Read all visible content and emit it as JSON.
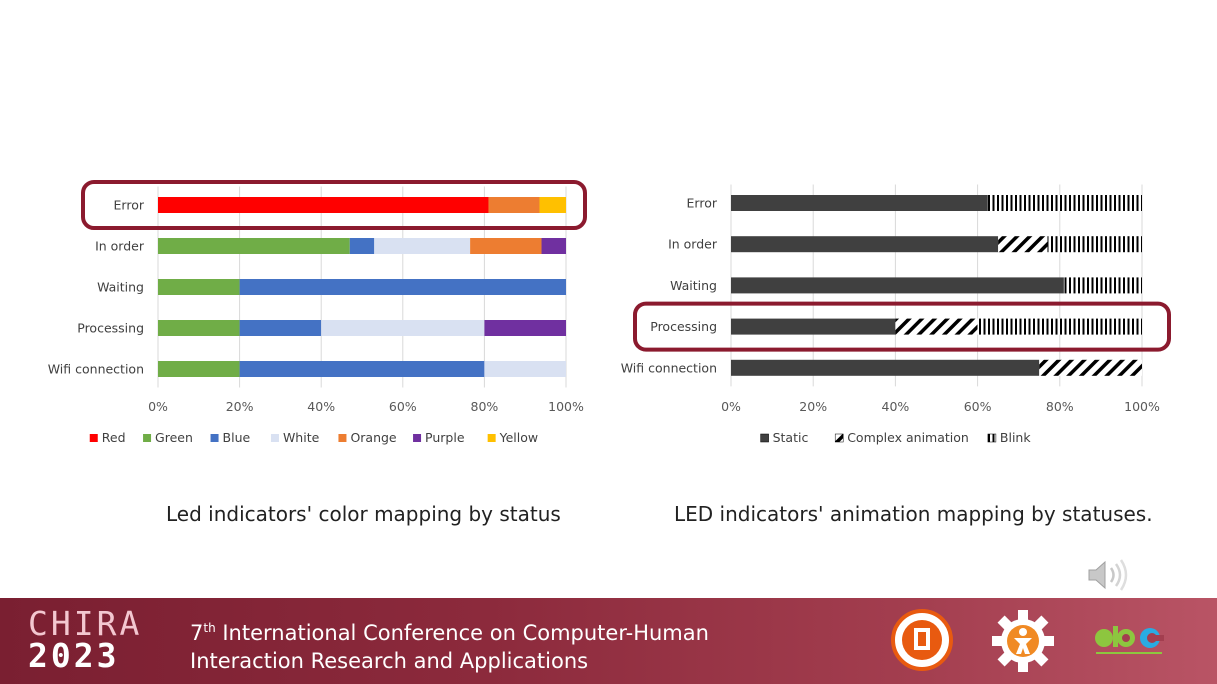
{
  "captions": {
    "left": "Led indicators' color mapping by status",
    "right": "LED indicators' animation mapping by statuses."
  },
  "footer": {
    "brand_line1": "CHIRA",
    "brand_line2": "2023",
    "conf_ordinal": "7",
    "conf_suffix": "th",
    "conf_line1_rest": " International Conference on Computer-Human",
    "conf_line2": "Interaction Research and Applications"
  },
  "colors": {
    "highlight": "#8b1a2e",
    "footer": "#8c2a3c"
  },
  "icons": [
    "speaker-icon",
    "university-logo",
    "gear-person-logo",
    "abc-logo"
  ],
  "chart_data": [
    {
      "type": "bar",
      "orientation": "horizontal",
      "stacked": true,
      "percent": true,
      "categories": [
        "Error",
        "In order",
        "Waiting",
        "Processing",
        "Wifi connection"
      ],
      "x_ticks": [
        "0%",
        "20%",
        "40%",
        "60%",
        "80%",
        "100%"
      ],
      "xlim": [
        0,
        100
      ],
      "legend_position": "bottom",
      "highlighted_category": "Error",
      "series": [
        {
          "name": "Red",
          "color": "#ff0000",
          "values": [
            81,
            0,
            0,
            0,
            0
          ]
        },
        {
          "name": "Green",
          "color": "#70ad47",
          "values": [
            0,
            47,
            20,
            20,
            20
          ]
        },
        {
          "name": "Blue",
          "color": "#4472c4",
          "values": [
            0,
            6,
            80,
            20,
            60
          ]
        },
        {
          "name": "White",
          "color": "#d9e1f2",
          "values": [
            0,
            23.5,
            0,
            40,
            20
          ]
        },
        {
          "name": "Orange",
          "color": "#ed7d31",
          "values": [
            12.5,
            17.5,
            0,
            0,
            0
          ]
        },
        {
          "name": "Purple",
          "color": "#7030a0",
          "values": [
            0,
            6,
            0,
            20,
            0
          ]
        },
        {
          "name": "Yellow",
          "color": "#ffc000",
          "values": [
            6.5,
            0,
            0,
            0,
            0
          ]
        }
      ]
    },
    {
      "type": "bar",
      "orientation": "horizontal",
      "stacked": true,
      "percent": true,
      "categories": [
        "Error",
        "In order",
        "Waiting",
        "Processing",
        "Wifi connection"
      ],
      "x_ticks": [
        "0%",
        "20%",
        "40%",
        "60%",
        "80%",
        "100%"
      ],
      "xlim": [
        0,
        100
      ],
      "legend_position": "bottom",
      "highlighted_category": "Processing",
      "series": [
        {
          "name": "Static",
          "color": "#404040",
          "pattern": "solid",
          "values": [
            62.5,
            65,
            81,
            40,
            75
          ]
        },
        {
          "name": "Complex animation",
          "color": "#000000",
          "pattern": "diagonal",
          "values": [
            0,
            12,
            0,
            20,
            25
          ]
        },
        {
          "name": "Blink",
          "color": "#000000",
          "pattern": "vertical",
          "values": [
            37.5,
            23,
            19,
            40,
            0
          ]
        }
      ]
    }
  ]
}
